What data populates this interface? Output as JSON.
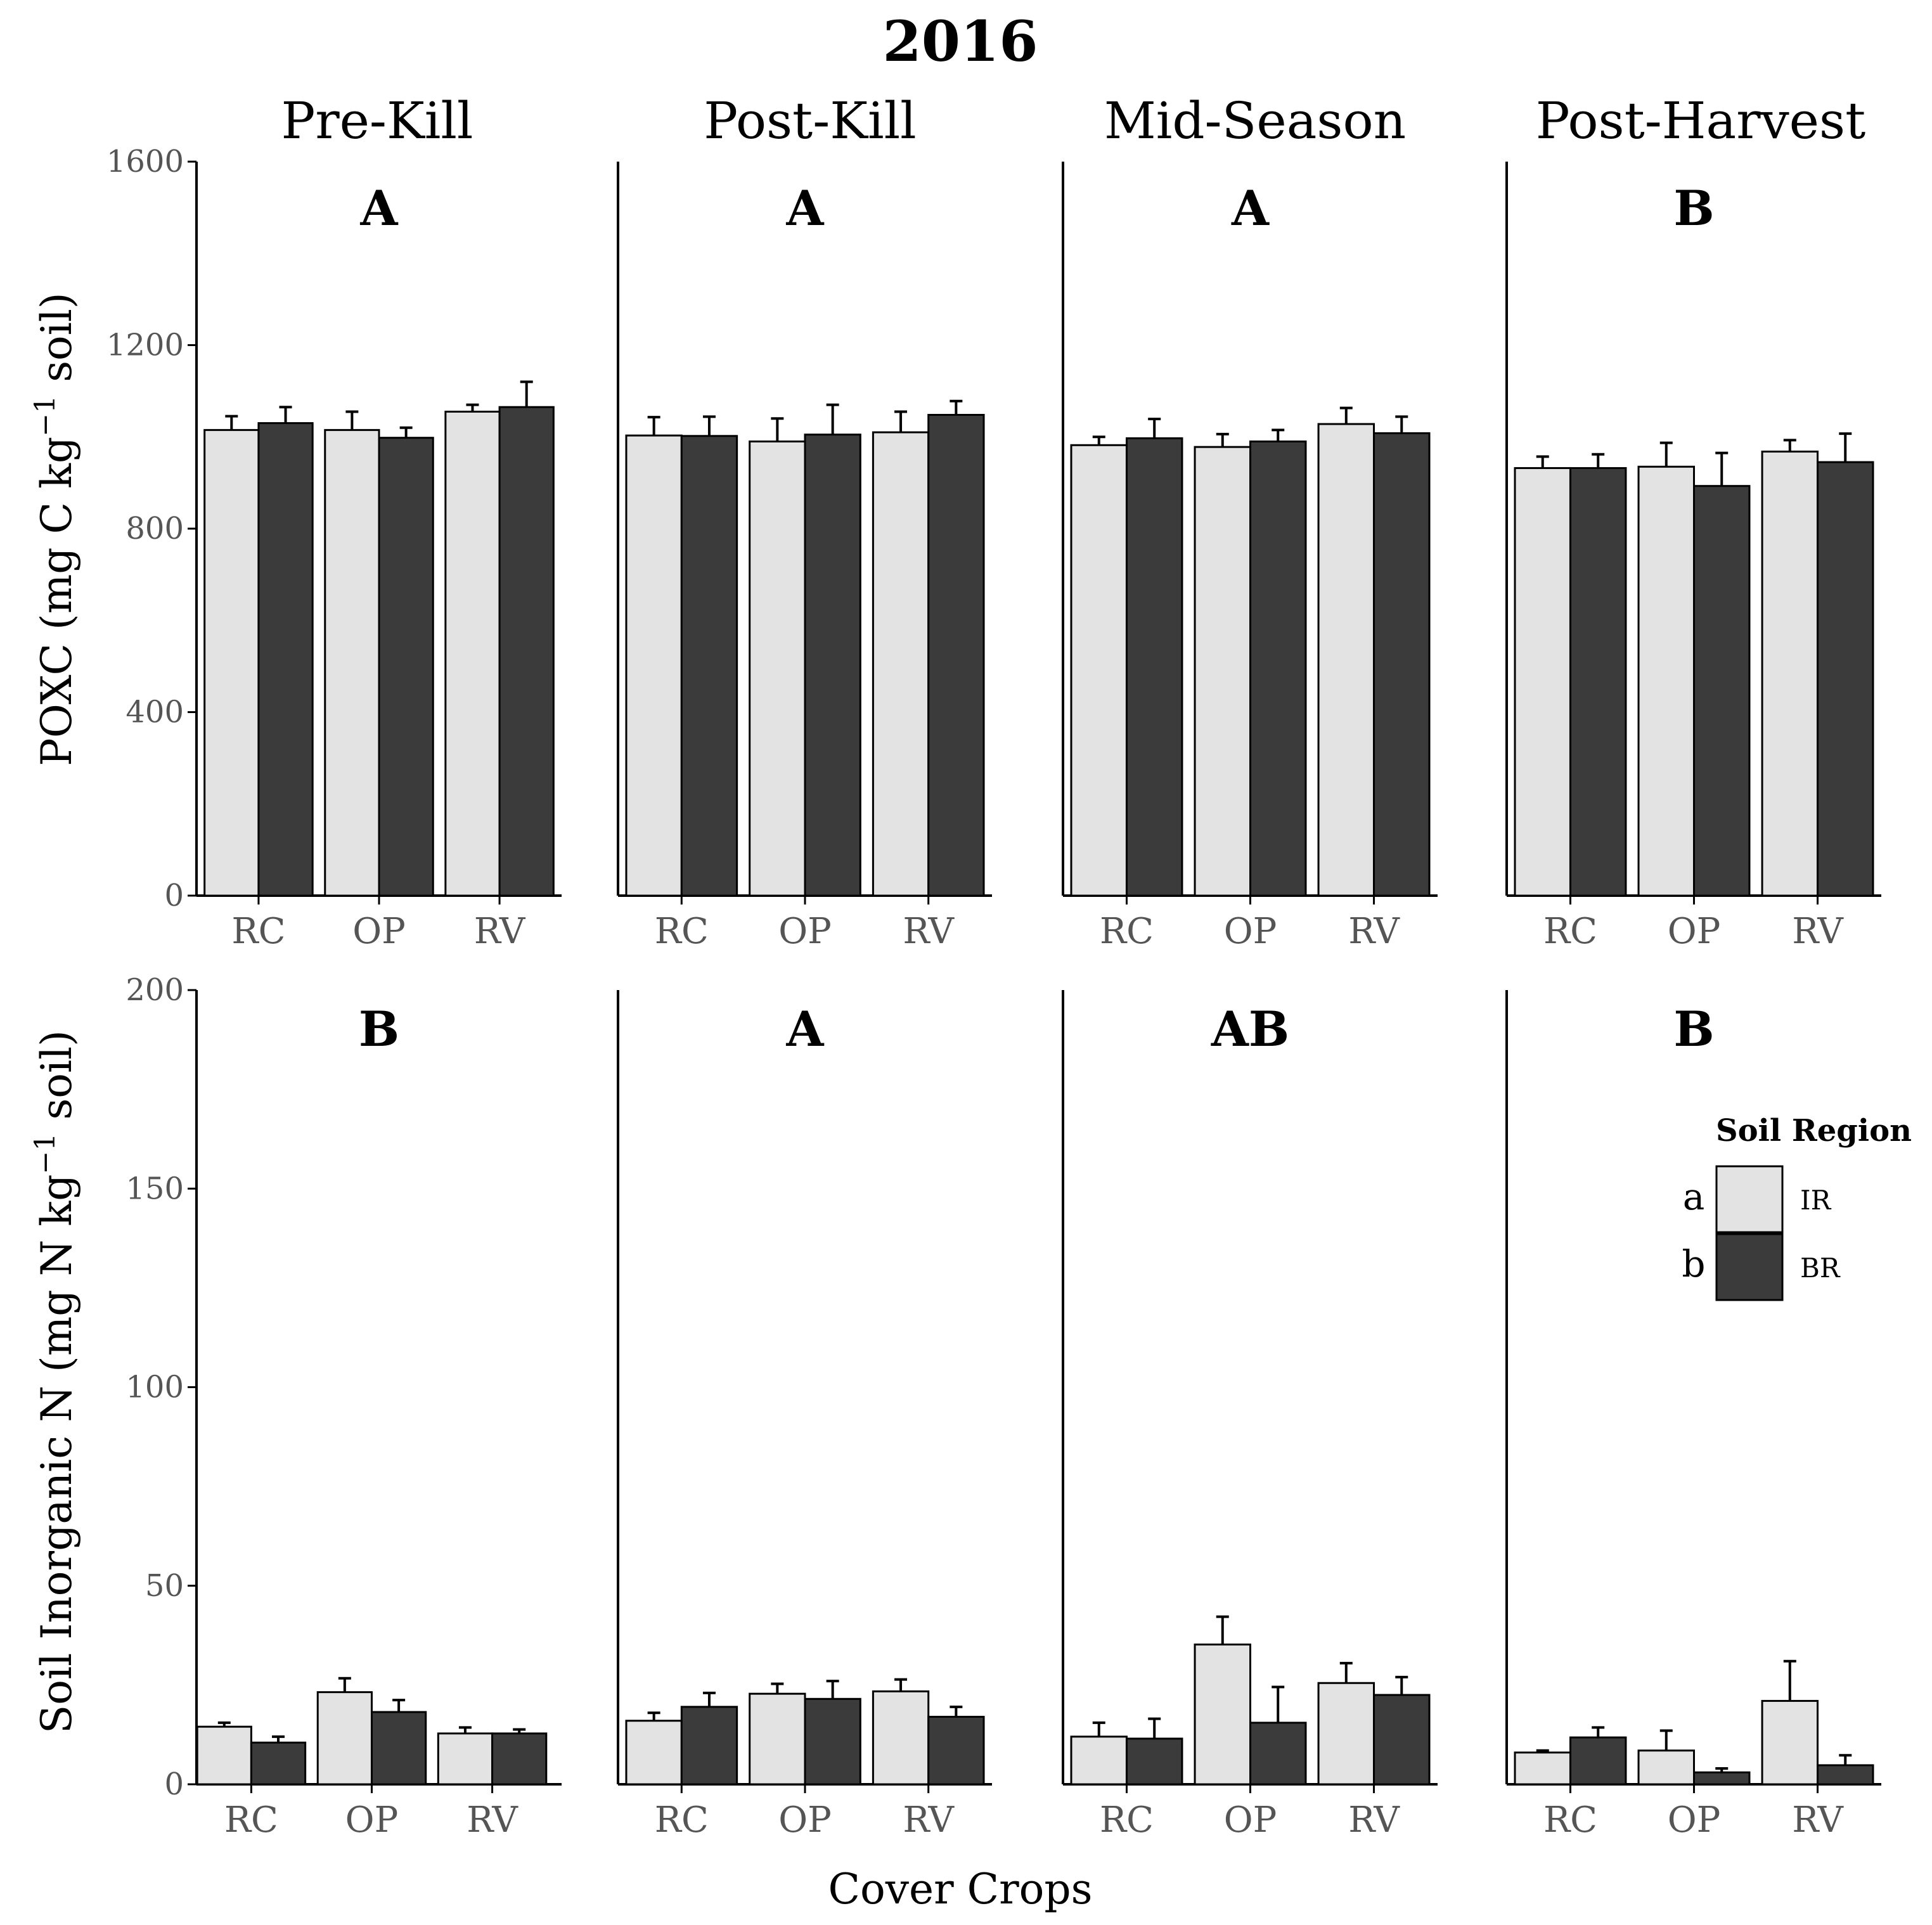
{
  "chart_data": {
    "type": "bar",
    "title": "2016",
    "xlabel": "Cover Crops",
    "facets": [
      "Pre-Kill",
      "Post-Kill",
      "Mid-Season",
      "Post-Harvest"
    ],
    "categories": [
      "RC",
      "OP",
      "RV"
    ],
    "legend": {
      "title": "Soil Region",
      "items": [
        {
          "name": "IR",
          "letter": "a",
          "color": "#e3e3e3"
        },
        {
          "name": "BR",
          "letter": "b",
          "color": "#3b3b3b"
        }
      ]
    },
    "rows": [
      {
        "ylabel": "POXC (mg C  kg",
        "ylabel_sup": "−1",
        "ylabel_end": " soil)",
        "ylim": [
          0,
          1600
        ],
        "yticks": [
          "0",
          "400",
          "800",
          "1200",
          "1600"
        ],
        "letters": [
          "A",
          "A",
          "A",
          "B"
        ],
        "panels": [
          {
            "IR": [
              1015,
              1015,
              1055
            ],
            "IR_err": [
              30,
              40,
              15
            ],
            "BR": [
              1030,
              998,
              1065
            ],
            "BR_err": [
              35,
              22,
              55
            ]
          },
          {
            "IR": [
              1003,
              990,
              1010
            ],
            "IR_err": [
              40,
              50,
              45
            ],
            "BR": [
              1002,
              1005,
              1048
            ],
            "BR_err": [
              42,
              65,
              30
            ]
          },
          {
            "IR": [
              982,
              978,
              1028
            ],
            "IR_err": [
              18,
              28,
              35
            ],
            "BR": [
              997,
              990,
              1008
            ],
            "BR_err": [
              42,
              25,
              36
            ]
          },
          {
            "IR": [
              932,
              935,
              968
            ],
            "IR_err": [
              25,
              52,
              25
            ],
            "BR": [
              932,
              893,
              945
            ],
            "BR_err": [
              30,
              72,
              62
            ]
          }
        ]
      },
      {
        "ylabel": "Soil Inorganic N (mg N  kg",
        "ylabel_sup": "−1",
        "ylabel_end": " soil)",
        "ylim": [
          0,
          200
        ],
        "yticks": [
          "0",
          "50",
          "100",
          "150",
          "200"
        ],
        "letters": [
          "B",
          "A",
          "AB",
          "B"
        ],
        "panels": [
          {
            "IR": [
              14.5,
              23.2,
              12.8
            ],
            "IR_err": [
              1,
              3.5,
              1.5
            ],
            "BR": [
              10.5,
              18.2,
              12.8
            ],
            "BR_err": [
              1.5,
              3,
              1
            ]
          },
          {
            "IR": [
              16.0,
              22.8,
              23.4
            ],
            "IR_err": [
              2,
              2.5,
              3
            ],
            "BR": [
              19.5,
              21.5,
              17.0
            ],
            "BR_err": [
              3.5,
              4.5,
              2.5
            ]
          },
          {
            "IR": [
              12.0,
              35.2,
              25.5
            ],
            "IR_err": [
              3.5,
              7,
              5
            ],
            "BR": [
              11.5,
              15.5,
              22.5
            ],
            "BR_err": [
              5,
              9,
              4.5
            ]
          },
          {
            "IR": [
              8.0,
              8.5,
              21.0
            ],
            "IR_err": [
              0.5,
              5,
              10
            ],
            "BR": [
              11.8,
              3.0,
              4.8
            ],
            "BR_err": [
              2.5,
              1,
              2.5
            ]
          }
        ]
      }
    ]
  }
}
